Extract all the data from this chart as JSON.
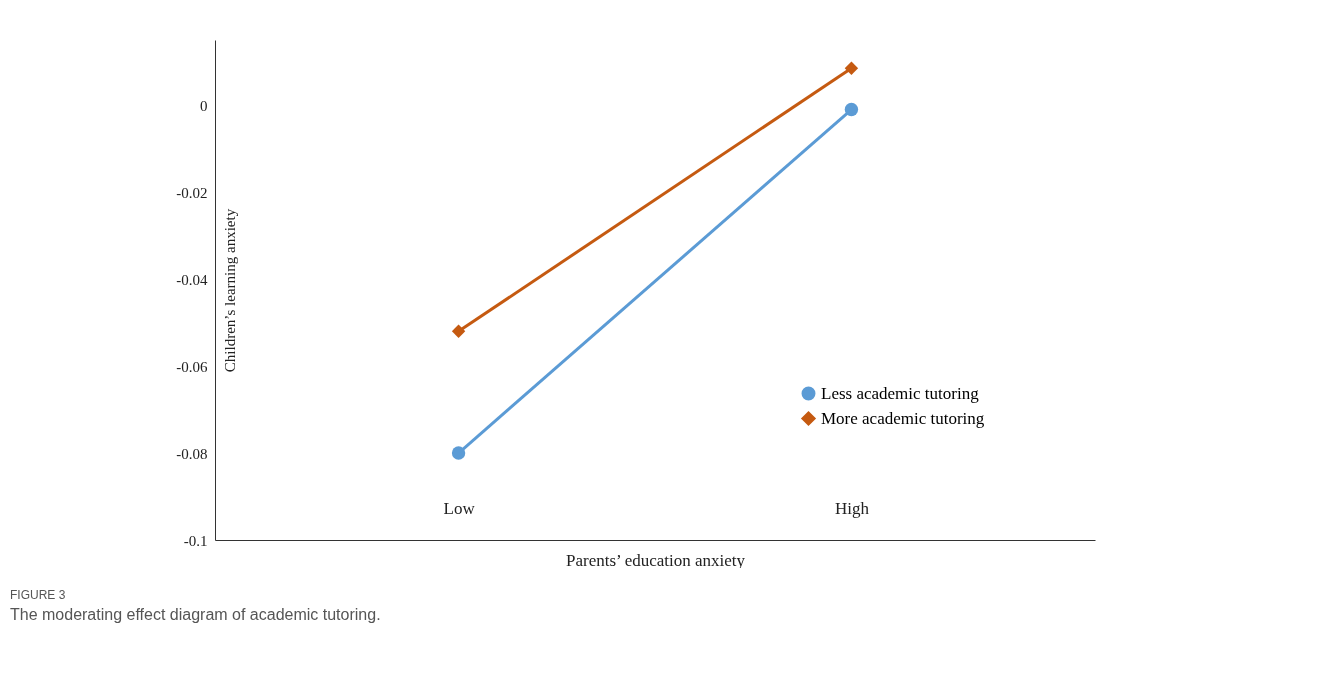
{
  "chart_data": {
    "type": "line",
    "categories": [
      "Low",
      "High"
    ],
    "xlabel": "Parents’ education anxiety",
    "ylabel": "Children’s learning anxiety",
    "ylim": [
      -0.1,
      0.015
    ],
    "yticks": [
      {
        "value": 0,
        "label": "0"
      },
      -0.02,
      -0.04,
      -0.06,
      -0.08,
      -0.1
    ],
    "series": [
      {
        "name": "Less academic tutoring",
        "color": "#5b9bd5",
        "marker": "circle",
        "values": [
          -0.08,
          -0.001
        ]
      },
      {
        "name": "More academic tutoring",
        "color": "#c55a11",
        "marker": "diamond",
        "values": [
          -0.052,
          0.0085
        ]
      }
    ],
    "grid": false,
    "legend": "bottom right",
    "annotations": [
      "FIGURE 3",
      "The moderating effect diagram of academic tutoring."
    ]
  }
}
